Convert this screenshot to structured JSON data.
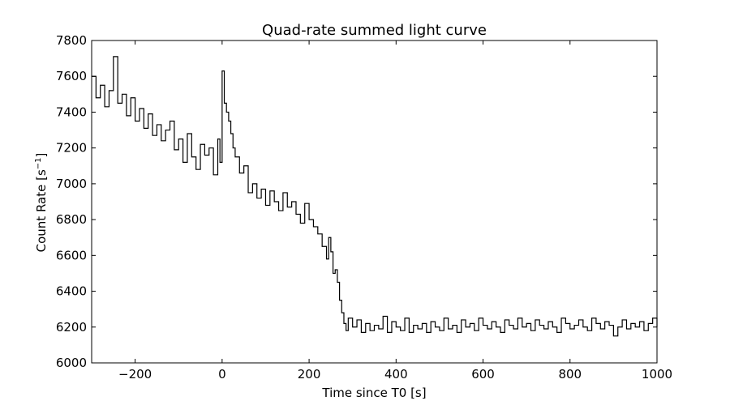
{
  "chart_data": {
    "type": "line",
    "title": "Quad-rate summed light curve",
    "xlabel": "Time since T0 [s]",
    "ylabel_text": "Count Rate [s",
    "ylabel_sup": "−1",
    "ylabel_close": "]",
    "xlim": [
      -300,
      1000
    ],
    "ylim": [
      6000,
      7800
    ],
    "xticks": [
      -200,
      0,
      200,
      400,
      600,
      800,
      1000
    ],
    "xtick_labels": [
      "−200",
      "0",
      "200",
      "400",
      "600",
      "800",
      "1000"
    ],
    "yticks": [
      6000,
      6200,
      6400,
      6600,
      6800,
      7000,
      7200,
      7400,
      7600,
      7800
    ],
    "ytick_labels": [
      "6000",
      "6200",
      "6400",
      "6600",
      "6800",
      "7000",
      "7200",
      "7400",
      "7600",
      "7800"
    ],
    "grid": false,
    "line_color": "#000000",
    "series": [
      {
        "x": [
          -300,
          -290,
          -280,
          -270,
          -260,
          -250,
          -240,
          -230,
          -220,
          -210,
          -200,
          -190,
          -180,
          -170,
          -160,
          -150,
          -140,
          -130,
          -120,
          -110,
          -100,
          -90,
          -80,
          -70,
          -60,
          -50,
          -40,
          -30,
          -20,
          -10,
          -5,
          0,
          5,
          10,
          15,
          20,
          25,
          30,
          40,
          50,
          60,
          70,
          80,
          90,
          100,
          110,
          120,
          130,
          140,
          150,
          160,
          170,
          180,
          190,
          200,
          210,
          220,
          230,
          240,
          245,
          250,
          255,
          260,
          265,
          270,
          275,
          280,
          285,
          290,
          300,
          310,
          320,
          330,
          340,
          350,
          360,
          370,
          380,
          390,
          400,
          410,
          420,
          430,
          440,
          450,
          460,
          470,
          480,
          490,
          500,
          510,
          520,
          530,
          540,
          550,
          560,
          570,
          580,
          590,
          600,
          610,
          620,
          630,
          640,
          650,
          660,
          670,
          680,
          690,
          700,
          710,
          720,
          730,
          740,
          750,
          760,
          770,
          780,
          790,
          800,
          810,
          820,
          830,
          840,
          850,
          860,
          870,
          880,
          890,
          900,
          910,
          920,
          930,
          940,
          950,
          960,
          970,
          980,
          990,
          1000
        ],
        "values": [
          7600,
          7480,
          7550,
          7430,
          7520,
          7710,
          7450,
          7500,
          7380,
          7480,
          7350,
          7420,
          7310,
          7390,
          7270,
          7330,
          7240,
          7300,
          7350,
          7190,
          7250,
          7120,
          7280,
          7150,
          7080,
          7220,
          7160,
          7200,
          7050,
          7250,
          7120,
          7630,
          7450,
          7400,
          7350,
          7280,
          7200,
          7150,
          7060,
          7100,
          6950,
          7000,
          6920,
          6970,
          6880,
          6960,
          6900,
          6850,
          6950,
          6870,
          6900,
          6830,
          6780,
          6890,
          6800,
          6760,
          6720,
          6650,
          6580,
          6700,
          6620,
          6500,
          6520,
          6450,
          6350,
          6280,
          6220,
          6180,
          6250,
          6200,
          6240,
          6170,
          6220,
          6180,
          6210,
          6190,
          6260,
          6170,
          6230,
          6200,
          6180,
          6250,
          6170,
          6210,
          6190,
          6220,
          6170,
          6230,
          6200,
          6180,
          6250,
          6190,
          6210,
          6170,
          6240,
          6200,
          6220,
          6180,
          6250,
          6210,
          6190,
          6230,
          6200,
          6170,
          6240,
          6210,
          6190,
          6250,
          6200,
          6220,
          6180,
          6240,
          6210,
          6190,
          6230,
          6200,
          6170,
          6250,
          6220,
          6190,
          6210,
          6240,
          6200,
          6180,
          6250,
          6220,
          6190,
          6230,
          6210,
          6150,
          6200,
          6240,
          6190,
          6220,
          6200,
          6230,
          6180,
          6220,
          6250,
          6200
        ]
      }
    ]
  }
}
